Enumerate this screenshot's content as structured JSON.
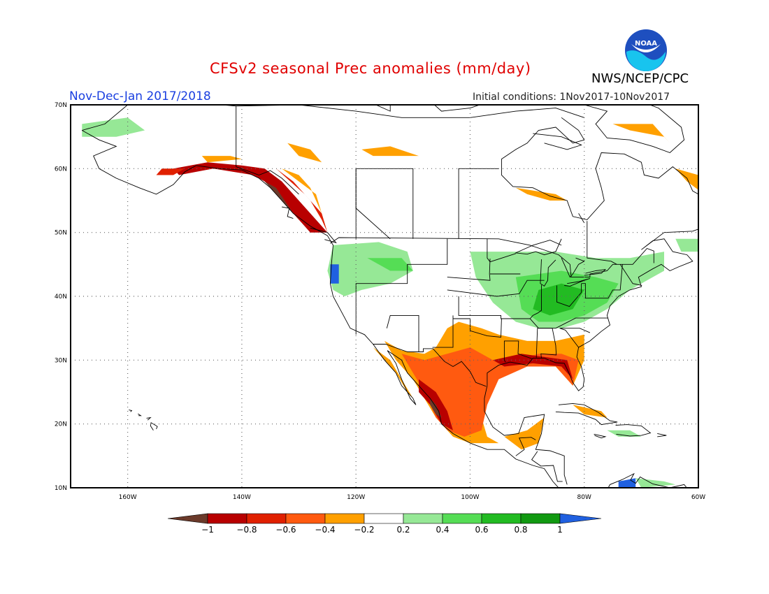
{
  "title": "CFSv2 seasonal Prec anomalies (mm/day)",
  "subtitle": "Nov-Dec-Jan 2017/2018",
  "initial_conditions": "Initial conditions: 1Nov2017-10Nov2017",
  "agency": "NWS/NCEP/CPC",
  "logo_text": "NOAA",
  "map": {
    "lon_range": [
      -170,
      -60
    ],
    "lat_range": [
      10,
      70
    ],
    "lon_ticks": [
      "160W",
      "140W",
      "120W",
      "100W",
      "80W",
      "60W"
    ],
    "lat_ticks": [
      "10N",
      "20N",
      "30N",
      "40N",
      "50N",
      "60N",
      "70N"
    ],
    "grid": "dotted"
  },
  "colorbar": {
    "labels": [
      "-1",
      "-0.8",
      "-0.6",
      "-0.4",
      "-0.2",
      "0.2",
      "0.4",
      "0.6",
      "0.8",
      "1"
    ],
    "colors": [
      "#6b3a2a",
      "#b80000",
      "#e02000",
      "#ff5a10",
      "#ffa000",
      "#ffffff",
      "#96e896",
      "#55dd55",
      "#22bb22",
      "#119911",
      "#2060e0"
    ]
  },
  "colors": {
    "brown": "#6b3a2a",
    "dark_red": "#b80000",
    "red": "#e02000",
    "red_orange": "#ff5a10",
    "orange": "#ffa000",
    "light_green": "#96e896",
    "green": "#55dd55",
    "mid_green": "#22bb22",
    "dark_green": "#119911",
    "blue": "#2060e0"
  },
  "anomaly_patches": [
    {
      "level": "brown",
      "note": "Alaska panhandle coast",
      "pts": [
        [
          -136,
          59
        ],
        [
          -134,
          58
        ],
        [
          -132,
          56
        ],
        [
          -131,
          55
        ],
        [
          -130,
          54
        ],
        [
          -129,
          53
        ],
        [
          -128,
          52
        ],
        [
          -130,
          52
        ],
        [
          -133,
          55
        ],
        [
          -135,
          57
        ],
        [
          -137,
          59
        ]
      ]
    },
    {
      "level": "dark_red",
      "note": "Gulf of Alaska coast",
      "pts": [
        [
          -152,
          60
        ],
        [
          -146,
          61
        ],
        [
          -140,
          60.5
        ],
        [
          -136,
          60
        ],
        [
          -133,
          58
        ],
        [
          -130,
          55
        ],
        [
          -127,
          52
        ],
        [
          -125,
          50
        ],
        [
          -128,
          50
        ],
        [
          -131,
          53
        ],
        [
          -134,
          57
        ],
        [
          -138,
          59
        ],
        [
          -145,
          60
        ],
        [
          -151,
          59
        ]
      ]
    },
    {
      "level": "red",
      "note": "BC coast inner band",
      "pts": [
        [
          -134,
          60
        ],
        [
          -131,
          58
        ],
        [
          -128,
          55
        ],
        [
          -126,
          52
        ],
        [
          -125,
          50
        ],
        [
          -126,
          53
        ],
        [
          -129,
          56
        ]
      ]
    },
    {
      "level": "orange",
      "note": "BC interior",
      "pts": [
        [
          -133,
          60
        ],
        [
          -130,
          59
        ],
        [
          -128,
          57
        ],
        [
          -127,
          55
        ],
        [
          -126,
          53
        ],
        [
          -127,
          56
        ],
        [
          -130,
          58
        ]
      ]
    },
    {
      "level": "orange",
      "note": "Yukon strip",
      "pts": [
        [
          -147,
          62
        ],
        [
          -142,
          62
        ],
        [
          -140,
          61.5
        ],
        [
          -146,
          61
        ]
      ]
    },
    {
      "level": "orange",
      "note": "NW Territories",
      "pts": [
        [
          -132,
          64
        ],
        [
          -128,
          63
        ],
        [
          -126,
          61
        ],
        [
          -130,
          62
        ]
      ]
    },
    {
      "level": "orange",
      "note": "Great Slave area",
      "pts": [
        [
          -119,
          63
        ],
        [
          -114,
          63.5
        ],
        [
          -109,
          62
        ],
        [
          -117,
          62
        ]
      ]
    },
    {
      "level": "orange",
      "note": "Hudson Bay",
      "pts": [
        [
          -92,
          57
        ],
        [
          -85,
          56
        ],
        [
          -83,
          55
        ],
        [
          -86,
          55
        ],
        [
          -90,
          56
        ]
      ]
    },
    {
      "level": "orange",
      "note": "Baffin",
      "pts": [
        [
          -75,
          67
        ],
        [
          -68,
          67
        ],
        [
          -65,
          64
        ],
        [
          -66,
          65
        ],
        [
          -72,
          66
        ]
      ]
    },
    {
      "level": "orange",
      "note": "Labrador",
      "pts": [
        [
          -64,
          60
        ],
        [
          -60,
          59
        ],
        [
          -59,
          56
        ],
        [
          -62,
          58
        ]
      ]
    },
    {
      "level": "red",
      "note": "Alaska peninsula",
      "pts": [
        [
          -155,
          59
        ],
        [
          -152,
          59
        ],
        [
          -150,
          60
        ],
        [
          -154,
          60
        ]
      ]
    },
    {
      "level": "light_green",
      "note": "Alaska north",
      "pts": [
        [
          -168,
          67
        ],
        [
          -160,
          68
        ],
        [
          -157,
          66
        ],
        [
          -162,
          65
        ],
        [
          -168,
          65
        ]
      ]
    },
    {
      "level": "light_green",
      "note": "Pacific NW",
      "pts": [
        [
          -124,
          48
        ],
        [
          -116,
          48.5
        ],
        [
          -111,
          47
        ],
        [
          -110,
          44
        ],
        [
          -114,
          42
        ],
        [
          -119,
          41
        ],
        [
          -122,
          40
        ],
        [
          -124,
          41
        ],
        [
          -125,
          44
        ]
      ]
    },
    {
      "level": "green",
      "note": "Montana",
      "pts": [
        [
          -118,
          46
        ],
        [
          -112,
          46
        ],
        [
          -110,
          44
        ],
        [
          -114,
          44
        ]
      ]
    },
    {
      "level": "blue",
      "note": "Oregon coast",
      "pts": [
        [
          -124.5,
          45
        ],
        [
          -123,
          45
        ],
        [
          -123,
          42
        ],
        [
          -124.5,
          42
        ]
      ]
    },
    {
      "level": "light_green",
      "note": "Upper Midwest and Northeast",
      "pts": [
        [
          -100,
          47
        ],
        [
          -93,
          47
        ],
        [
          -85,
          47
        ],
        [
          -78,
          46
        ],
        [
          -72,
          46
        ],
        [
          -66,
          47
        ],
        [
          -66,
          44
        ],
        [
          -72,
          41
        ],
        [
          -76,
          38
        ],
        [
          -80,
          36
        ],
        [
          -84,
          35
        ],
        [
          -88,
          35
        ],
        [
          -92,
          36
        ],
        [
          -96,
          39
        ],
        [
          -99,
          43
        ]
      ]
    },
    {
      "level": "green",
      "note": "Ohio Valley",
      "pts": [
        [
          -92,
          43
        ],
        [
          -84,
          44
        ],
        [
          -78,
          43
        ],
        [
          -74,
          42
        ],
        [
          -76,
          39
        ],
        [
          -80,
          37
        ],
        [
          -84,
          36
        ],
        [
          -88,
          36
        ],
        [
          -91,
          38
        ]
      ]
    },
    {
      "level": "mid_green",
      "note": "Ohio Valley core",
      "pts": [
        [
          -88,
          41
        ],
        [
          -84,
          42
        ],
        [
          -80,
          41
        ],
        [
          -82,
          38
        ],
        [
          -86,
          37
        ],
        [
          -89,
          38
        ]
      ]
    },
    {
      "level": "light_green",
      "note": "Newfoundland",
      "pts": [
        [
          -64,
          49
        ],
        [
          -60,
          49
        ],
        [
          -60,
          47
        ],
        [
          -63,
          47
        ]
      ]
    },
    {
      "level": "orange",
      "note": "Southwest and Gulf",
      "pts": [
        [
          -115,
          33
        ],
        [
          -112,
          31.5
        ],
        [
          -108,
          31
        ],
        [
          -106,
          32
        ],
        [
          -104,
          35
        ],
        [
          -102,
          36
        ],
        [
          -98,
          35
        ],
        [
          -95,
          34
        ],
        [
          -90,
          33
        ],
        [
          -85,
          33
        ],
        [
          -80,
          34
        ],
        [
          -80,
          30
        ],
        [
          -82,
          26
        ],
        [
          -85,
          29
        ],
        [
          -90,
          29
        ],
        [
          -95,
          28
        ],
        [
          -97,
          25
        ],
        [
          -98,
          21
        ],
        [
          -97,
          18
        ],
        [
          -95,
          17
        ],
        [
          -100,
          17
        ],
        [
          -103,
          18
        ],
        [
          -106,
          21
        ],
        [
          -108,
          24
        ],
        [
          -110,
          27
        ],
        [
          -113,
          30
        ]
      ]
    },
    {
      "level": "red_orange",
      "note": "Mexico and Gulf coast",
      "pts": [
        [
          -112,
          31
        ],
        [
          -108,
          30
        ],
        [
          -104,
          31
        ],
        [
          -100,
          32
        ],
        [
          -96,
          30
        ],
        [
          -92,
          30
        ],
        [
          -88,
          31
        ],
        [
          -84,
          31
        ],
        [
          -81,
          30
        ],
        [
          -82,
          26
        ],
        [
          -85,
          29
        ],
        [
          -90,
          29
        ],
        [
          -95,
          27
        ],
        [
          -97,
          23
        ],
        [
          -98,
          19
        ],
        [
          -101,
          18
        ],
        [
          -104,
          19
        ],
        [
          -106,
          21
        ],
        [
          -108,
          25
        ],
        [
          -110,
          28
        ]
      ]
    },
    {
      "level": "dark_red",
      "note": "Gulf coast band",
      "pts": [
        [
          -96,
          30
        ],
        [
          -91,
          31
        ],
        [
          -87,
          30.5
        ],
        [
          -83,
          30
        ],
        [
          -82,
          27
        ],
        [
          -84,
          29
        ],
        [
          -89,
          29.5
        ],
        [
          -94,
          29
        ]
      ]
    },
    {
      "level": "dark_red",
      "note": "Sierra Madre",
      "pts": [
        [
          -109,
          27
        ],
        [
          -106,
          25
        ],
        [
          -104,
          22
        ],
        [
          -103,
          19
        ],
        [
          -105,
          20
        ],
        [
          -107,
          23
        ],
        [
          -109,
          25
        ]
      ]
    },
    {
      "level": "brown",
      "note": "Western Mexico",
      "pts": [
        [
          -107,
          24
        ],
        [
          -106,
          23
        ],
        [
          -105,
          21
        ],
        [
          -106,
          21.5
        ],
        [
          -107,
          23
        ]
      ]
    },
    {
      "level": "orange",
      "note": "Baja",
      "pts": [
        [
          -117,
          32
        ],
        [
          -114,
          30
        ],
        [
          -112,
          27
        ],
        [
          -110,
          24
        ],
        [
          -111,
          25
        ],
        [
          -113,
          28
        ],
        [
          -116,
          31
        ]
      ]
    },
    {
      "level": "orange",
      "note": "Central America",
      "pts": [
        [
          -94,
          18
        ],
        [
          -90,
          19
        ],
        [
          -87,
          21
        ],
        [
          -88,
          17
        ],
        [
          -91,
          16
        ]
      ]
    },
    {
      "level": "orange",
      "note": "Cuba",
      "pts": [
        [
          -82,
          23
        ],
        [
          -77,
          22
        ],
        [
          -76,
          21
        ],
        [
          -80,
          21.5
        ]
      ]
    },
    {
      "level": "light_green",
      "note": "Caribbean",
      "pts": [
        [
          -76,
          19
        ],
        [
          -72,
          19
        ],
        [
          -70,
          18
        ],
        [
          -74,
          18
        ]
      ]
    },
    {
      "level": "blue",
      "note": "Venezuela",
      "pts": [
        [
          -74,
          11
        ],
        [
          -71,
          11.5
        ],
        [
          -71,
          10
        ],
        [
          -74,
          10
        ]
      ]
    },
    {
      "level": "light_green",
      "note": "Venezuela east",
      "pts": [
        [
          -71,
          11.5
        ],
        [
          -66,
          11
        ],
        [
          -64,
          10.5
        ],
        [
          -70,
          10
        ]
      ]
    }
  ]
}
